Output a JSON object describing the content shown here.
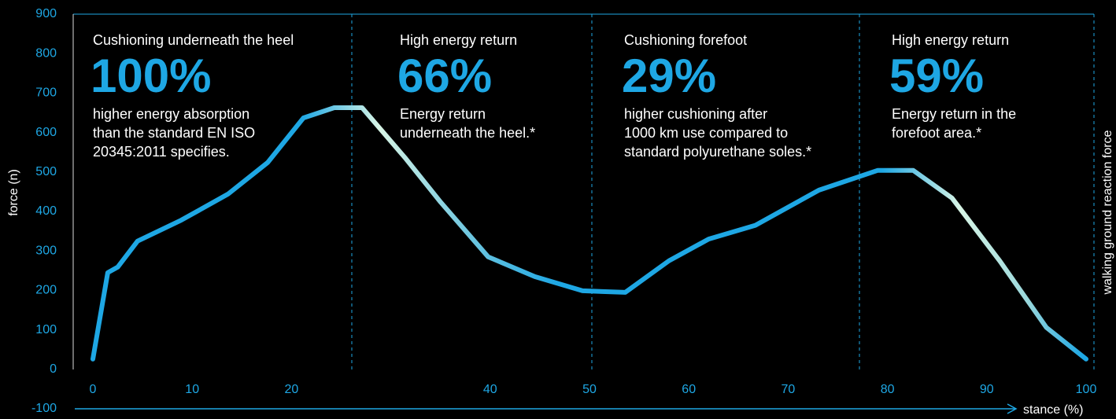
{
  "chart_data": {
    "type": "line",
    "y_label": "force (n)",
    "x_label": "stance (%)",
    "side_label": "walking ground reaction force",
    "xlim": [
      0,
      100
    ],
    "ylim": [
      -100,
      900
    ],
    "xticks": [
      0,
      10,
      20,
      40,
      50,
      60,
      70,
      80,
      90,
      100
    ],
    "yticks": [
      -100,
      0,
      100,
      200,
      300,
      400,
      500,
      600,
      700,
      800,
      900
    ],
    "series": [
      {
        "color": "#1ea7e4",
        "x": [
          0,
          1.5,
          2.5,
          4.5,
          8.9,
          13.6,
          17.6,
          21.2,
          24.3,
          27.1,
          31.5,
          35,
          39.8,
          44.5,
          49.3,
          53.6,
          58,
          62,
          66.7,
          73.1,
          79,
          82.6,
          86.5,
          91.3,
          96,
          100
        ],
        "values": [
          26,
          245,
          259,
          325,
          378,
          444,
          524,
          637,
          663,
          663,
          534,
          424,
          285,
          235,
          199,
          195,
          275,
          330,
          365,
          454,
          504,
          504,
          434,
          275,
          106,
          26
        ]
      }
    ],
    "annotations": [
      {
        "heading": "Cushioning underneath the heel",
        "figure": "100%",
        "lines": [
          "higher energy absorption",
          "than the standard EN ISO",
          "20345:2011 specifies."
        ]
      },
      {
        "heading": "High energy return",
        "figure": "66%",
        "lines": [
          "Energy return",
          "underneath the heel.*"
        ]
      },
      {
        "heading": "Cushioning forefoot",
        "figure": "29%",
        "lines": [
          "higher cushioning after",
          "1000 km use compared to",
          "standard polyurethane soles.*"
        ]
      },
      {
        "heading": "High energy return",
        "figure": "59%",
        "lines": [
          "Energy return in the",
          "forefoot area.*"
        ]
      }
    ]
  }
}
